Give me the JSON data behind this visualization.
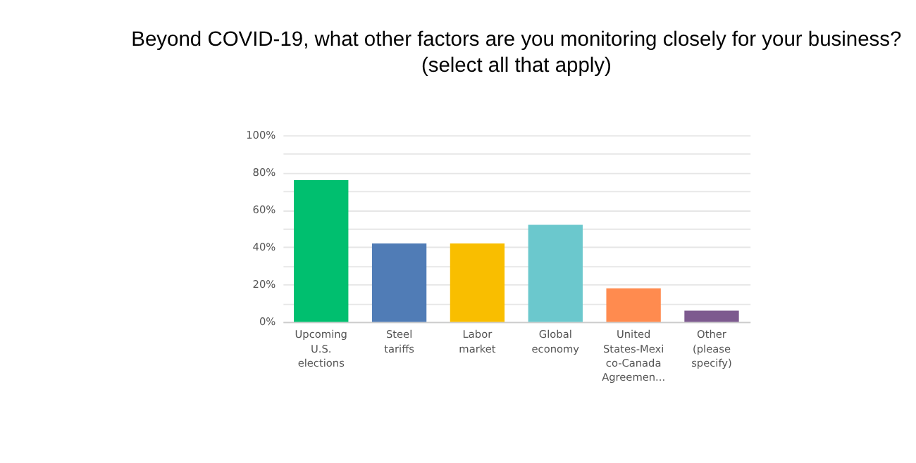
{
  "chart_data": {
    "type": "bar",
    "title": "Beyond COVID-19, what other factors are you monitoring closely for your business? (select all that apply)",
    "categories": [
      "Upcoming U.S. elections",
      "Steel tariffs",
      "Labor market",
      "Global economy",
      "United States-Mexico-Canada Agreemen...",
      "Other (please specify)"
    ],
    "values": [
      76,
      42,
      42,
      52,
      18,
      6
    ],
    "colors": [
      "#00bf6f",
      "#507cb6",
      "#f9be00",
      "#6bc8cd",
      "#ff8b4f",
      "#7d5a8f"
    ],
    "ylim": [
      0,
      100
    ],
    "yticks": [
      {
        "value": 0,
        "label": "0%"
      },
      {
        "value": 10,
        "label": null
      },
      {
        "value": 20,
        "label": "20%"
      },
      {
        "value": 30,
        "label": null
      },
      {
        "value": 40,
        "label": "40%"
      },
      {
        "value": 50,
        "label": null
      },
      {
        "value": 60,
        "label": "60%"
      },
      {
        "value": 70,
        "label": null
      },
      {
        "value": 80,
        "label": "80%"
      },
      {
        "value": 90,
        "label": null
      },
      {
        "value": 100,
        "label": "100%"
      }
    ],
    "grid": "y"
  }
}
